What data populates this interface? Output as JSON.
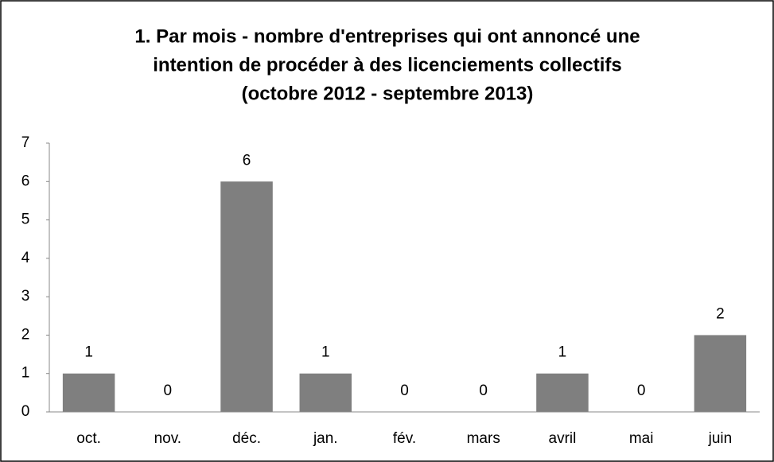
{
  "chart_data": {
    "type": "bar",
    "title": [
      "1. Par mois - nombre d'entreprises qui ont annoncé une",
      "intention de procéder à des licenciements collectifs",
      "(octobre 2012 - septembre 2013)"
    ],
    "categories": [
      "oct.",
      "nov.",
      "déc.",
      "jan.",
      "fév.",
      "mars",
      "avril",
      "mai",
      "juin"
    ],
    "values": [
      1,
      0,
      6,
      1,
      0,
      0,
      1,
      0,
      2
    ],
    "color": "#7f7f7f",
    "ylim": [
      0,
      7
    ],
    "yticks": [
      0,
      1,
      2,
      3,
      4,
      5,
      6,
      7
    ],
    "grid": false
  }
}
